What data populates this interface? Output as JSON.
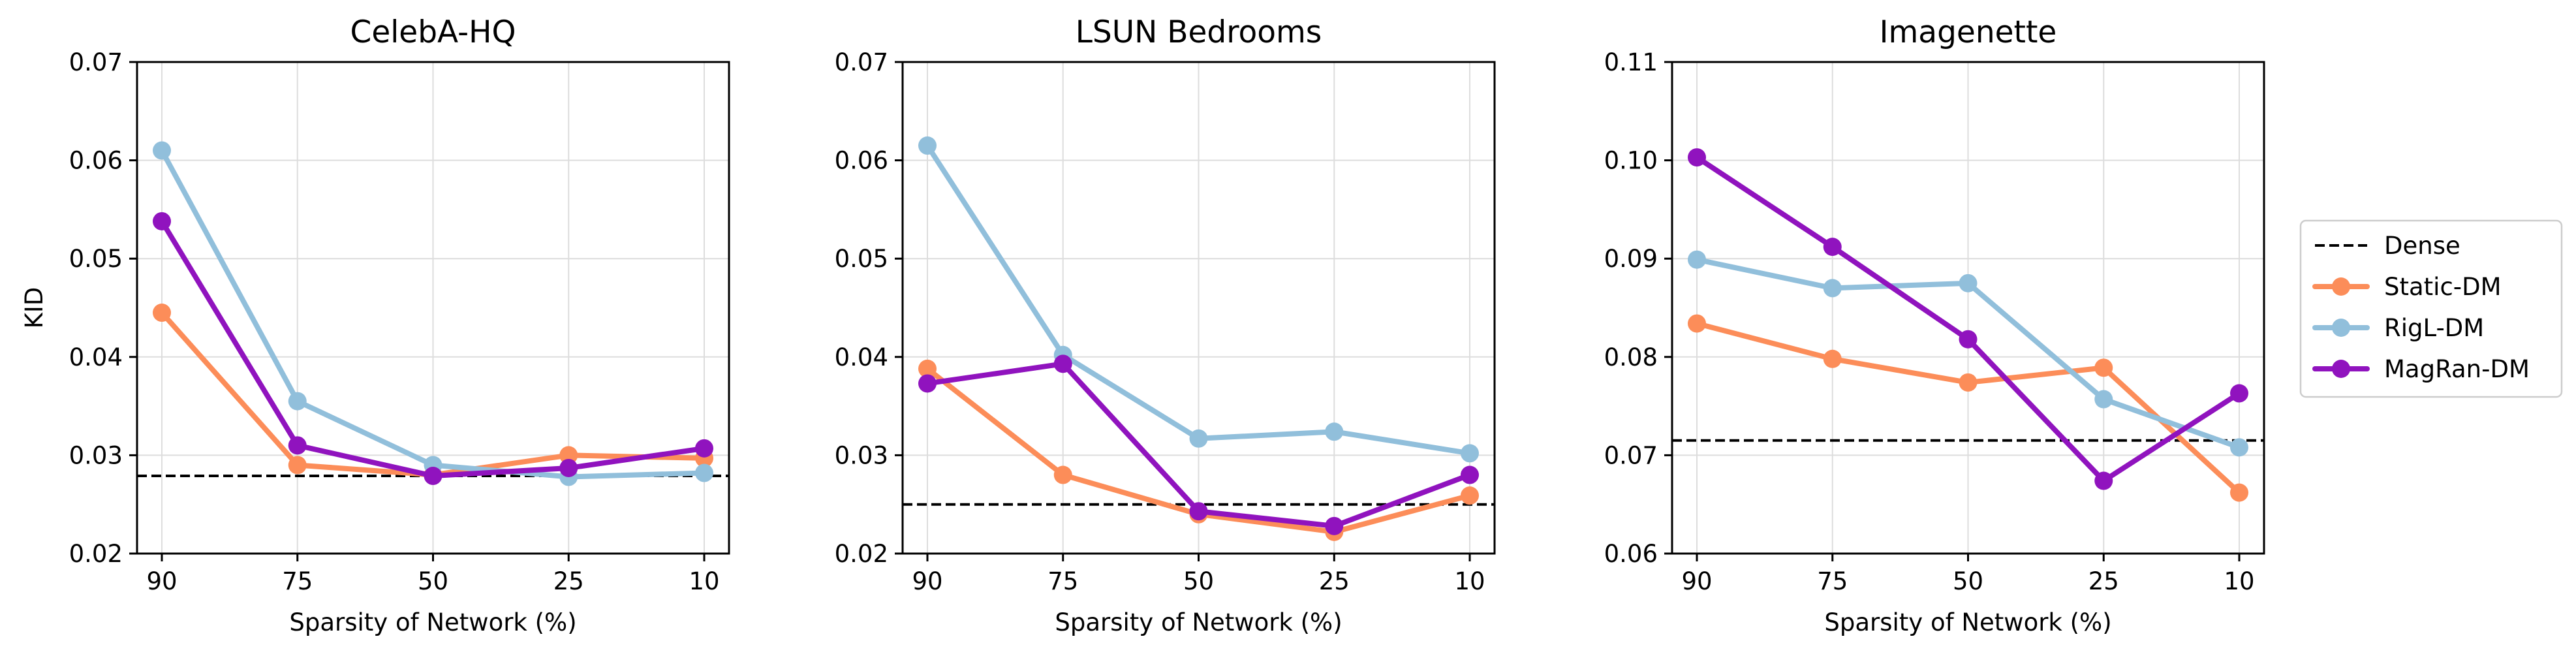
{
  "chart_data": [
    {
      "type": "line",
      "title": "CelebA-HQ",
      "xlabel": "Sparsity of Network (%)",
      "ylabel": "KID",
      "categories": [
        "90",
        "75",
        "50",
        "25",
        "10"
      ],
      "ylim": [
        0.02,
        0.07
      ],
      "yticks": [
        "0.02",
        "0.03",
        "0.04",
        "0.05",
        "0.06",
        "0.07"
      ],
      "dense": 0.0279,
      "series": [
        {
          "name": "Static-DM",
          "values": [
            0.0445,
            0.029,
            0.028,
            0.03,
            0.0297
          ]
        },
        {
          "name": "RigL-DM",
          "values": [
            0.061,
            0.0355,
            0.029,
            0.0278,
            0.0282
          ]
        },
        {
          "name": "MagRan-DM",
          "values": [
            0.0538,
            0.031,
            0.0279,
            0.0287,
            0.0307
          ]
        }
      ]
    },
    {
      "type": "line",
      "title": "LSUN Bedrooms",
      "xlabel": "Sparsity of Network (%)",
      "ylabel": "",
      "categories": [
        "90",
        "75",
        "50",
        "25",
        "10"
      ],
      "ylim": [
        0.02,
        0.07
      ],
      "yticks": [
        "0.02",
        "0.03",
        "0.04",
        "0.05",
        "0.06",
        "0.07"
      ],
      "dense": 0.025,
      "series": [
        {
          "name": "Static-DM",
          "values": [
            0.0388,
            0.028,
            0.024,
            0.0222,
            0.0259
          ]
        },
        {
          "name": "RigL-DM",
          "values": [
            0.0615,
            0.0402,
            0.0317,
            0.0324,
            0.0302
          ]
        },
        {
          "name": "MagRan-DM",
          "values": [
            0.0373,
            0.0393,
            0.0243,
            0.0228,
            0.028
          ]
        }
      ]
    },
    {
      "type": "line",
      "title": "Imagenette",
      "xlabel": "Sparsity of Network (%)",
      "ylabel": "",
      "categories": [
        "90",
        "75",
        "50",
        "25",
        "10"
      ],
      "ylim": [
        0.06,
        0.11
      ],
      "yticks": [
        "0.06",
        "0.07",
        "0.08",
        "0.09",
        "0.10",
        "0.11"
      ],
      "dense": 0.0715,
      "series": [
        {
          "name": "Static-DM",
          "values": [
            0.0834,
            0.0798,
            0.0774,
            0.0789,
            0.0662
          ]
        },
        {
          "name": "RigL-DM",
          "values": [
            0.0899,
            0.087,
            0.0875,
            0.0757,
            0.0708
          ]
        },
        {
          "name": "MagRan-DM",
          "values": [
            0.1003,
            0.0912,
            0.0818,
            0.0674,
            0.0763
          ]
        }
      ]
    }
  ],
  "legend": {
    "placement": "right",
    "entries": [
      {
        "name": "Dense",
        "style": "dashed",
        "color": "#000000"
      },
      {
        "name": "Static-DM",
        "style": "line-marker",
        "color": "#FC8D59"
      },
      {
        "name": "RigL-DM",
        "style": "line-marker",
        "color": "#91BFDB"
      },
      {
        "name": "MagRan-DM",
        "style": "line-marker",
        "color": "#9013BE"
      }
    ]
  },
  "colors": {
    "Static-DM": "#FC8D59",
    "RigL-DM": "#91BFDB",
    "MagRan-DM": "#9013BE",
    "Dense": "#000000",
    "grid": "#DDDDDD"
  },
  "grid": true
}
